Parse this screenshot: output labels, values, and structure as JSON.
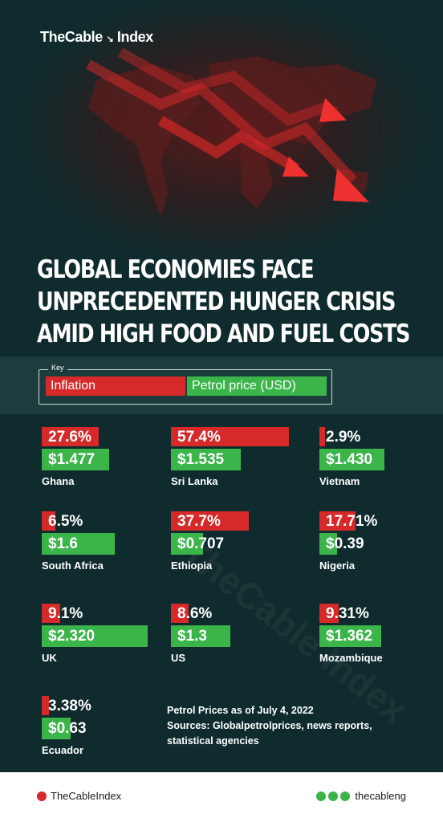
{
  "brand": {
    "name": "TheCable",
    "suffix": "Index"
  },
  "headline": {
    "line1": "GLOBAL ECONOMIES FACE",
    "line2": "UNPRECEDENTED HUNGER CRISIS",
    "line3": "AMID HIGH FOOD AND FUEL COSTS"
  },
  "key": {
    "title": "Key",
    "inflation": "Inflation",
    "petrol": "Petrol price (USD)"
  },
  "colors": {
    "inflation": "#d62a2a",
    "petrol": "#3bb54a",
    "background": "#0f2b2d"
  },
  "chart_data": {
    "type": "bar",
    "series": [
      {
        "name": "Inflation",
        "unit": "%"
      },
      {
        "name": "Petrol price (USD)",
        "unit": "USD"
      }
    ],
    "countries": [
      {
        "name": "Ghana",
        "inflation": 27.6,
        "inflation_label": "27.6%",
        "petrol": 1.477,
        "petrol_label": "$1.477"
      },
      {
        "name": "Sri Lanka",
        "inflation": 57.4,
        "inflation_label": "57.4%",
        "petrol": 1.535,
        "petrol_label": "$1.535"
      },
      {
        "name": "Vietnam",
        "inflation": 2.9,
        "inflation_label": "2.9%",
        "petrol": 1.43,
        "petrol_label": "$1.430"
      },
      {
        "name": "South Africa",
        "inflation": 6.5,
        "inflation_label": "6.5%",
        "petrol": 1.6,
        "petrol_label": "$1.6"
      },
      {
        "name": "Ethiopia",
        "inflation": 37.7,
        "inflation_label": "37.7%",
        "petrol": 0.707,
        "petrol_label": "$0.707"
      },
      {
        "name": "Nigeria",
        "inflation": 17.71,
        "inflation_label": "17.71%",
        "petrol": 0.39,
        "petrol_label": "$0.39"
      },
      {
        "name": "UK",
        "inflation": 9.1,
        "inflation_label": "9.1%",
        "petrol": 2.32,
        "petrol_label": "$2.320"
      },
      {
        "name": "US",
        "inflation": 8.6,
        "inflation_label": "8.6%",
        "petrol": 1.3,
        "petrol_label": "$1.3"
      },
      {
        "name": "Mozambique",
        "inflation": 9.31,
        "inflation_label": "9.31%",
        "petrol": 1.362,
        "petrol_label": "$1.362"
      },
      {
        "name": "Ecuador",
        "inflation": 3.38,
        "inflation_label": "3.38%",
        "petrol": 0.63,
        "petrol_label": "$0.63"
      }
    ]
  },
  "notes": {
    "line1": "Petrol Prices as of July 4, 2022",
    "line2": "Sources: Globalpetrolprices, news reports,",
    "line3": "statistical agencies"
  },
  "footer": {
    "left_handle": "TheCableIndex",
    "right_handle": "thecableng"
  },
  "watermark": "TheCable Index"
}
